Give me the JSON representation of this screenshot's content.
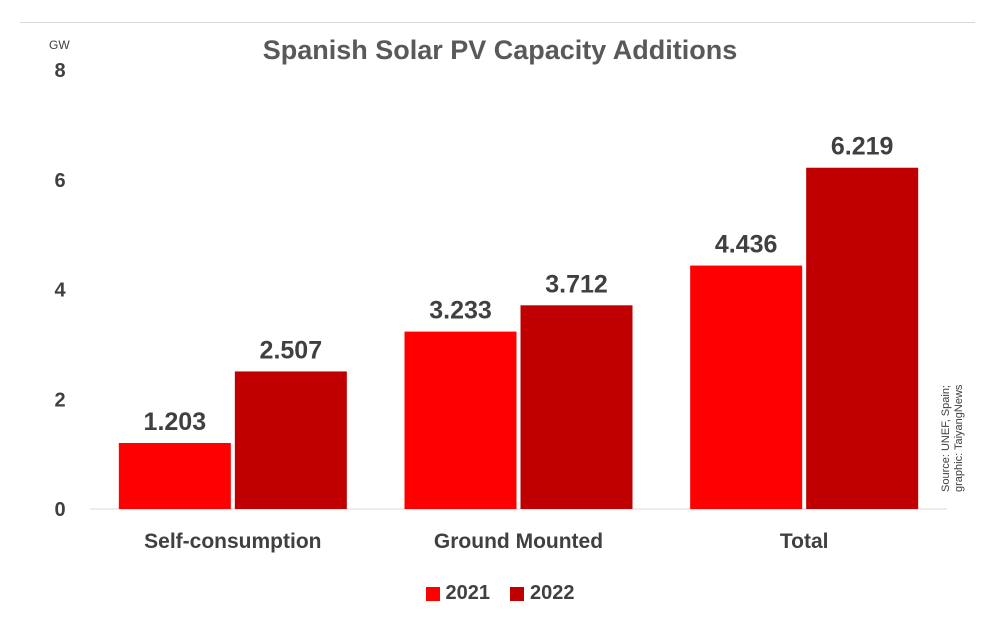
{
  "unit_label": "GW",
  "source_lines": [
    "Source: UNEF, Spain;",
    "graphic: TaiyangNews"
  ],
  "colors": {
    "2021": "#ff0000",
    "2022": "#c00000"
  },
  "chart_data": {
    "type": "bar",
    "title": "Spanish Solar PV Capacity Additions",
    "xlabel": "",
    "ylabel": "GW",
    "ylim": [
      0,
      8
    ],
    "yticks": [
      0,
      2,
      4,
      6,
      8
    ],
    "categories": [
      "Self-consumption",
      "Ground Mounted",
      "Total"
    ],
    "series": [
      {
        "name": "2021",
        "values": [
          1.203,
          3.233,
          4.436
        ],
        "labels": [
          "1.203",
          "3.233",
          "4.436"
        ]
      },
      {
        "name": "2022",
        "values": [
          2.507,
          3.712,
          6.219
        ],
        "labels": [
          "2.507",
          "3.712",
          "6.219"
        ]
      }
    ],
    "grid": false,
    "legend": "bottom"
  }
}
